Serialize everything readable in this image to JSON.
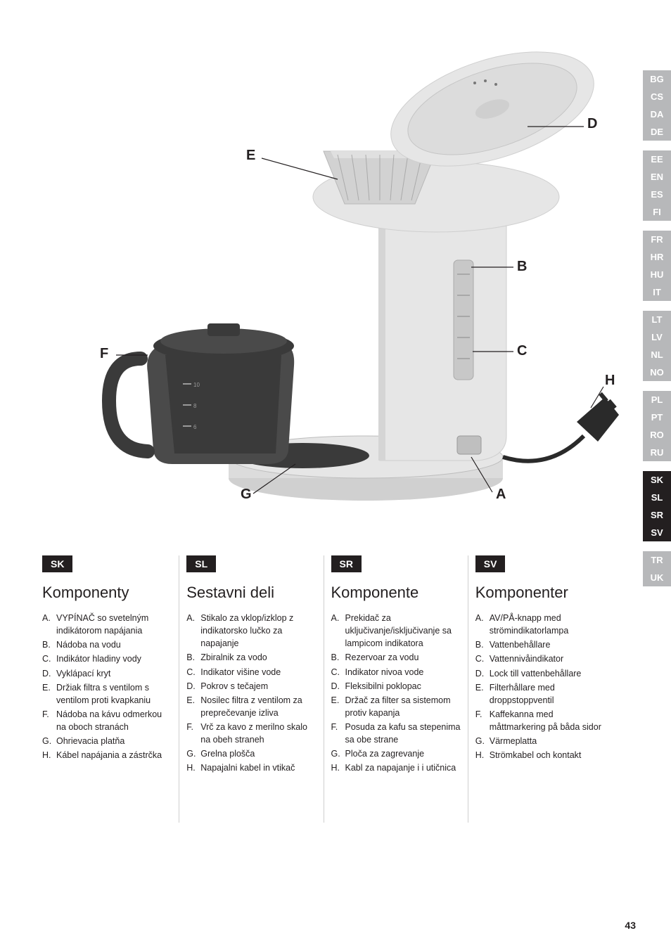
{
  "diagram": {
    "labels": {
      "A": "A",
      "B": "B",
      "C": "C",
      "D": "D",
      "E": "E",
      "F": "F",
      "G": "G",
      "H": "H"
    },
    "colors": {
      "body": "#e6e6e6",
      "body_shadow": "#cfcfcf",
      "dark": "#3a3a3a",
      "outline": "#4a4a4a",
      "line": "#231f20"
    }
  },
  "rail": {
    "groups": [
      {
        "items": [
          "BG",
          "CS",
          "DA",
          "DE"
        ],
        "active": []
      },
      {
        "items": [
          "EE",
          "EN",
          "ES",
          "FI"
        ],
        "active": []
      },
      {
        "items": [
          "FR",
          "HR",
          "HU",
          "IT"
        ],
        "active": []
      },
      {
        "items": [
          "LT",
          "LV",
          "NL",
          "NO"
        ],
        "active": []
      },
      {
        "items": [
          "PL",
          "PT",
          "RO",
          "RU"
        ],
        "active": []
      },
      {
        "items": [
          "SK",
          "SL",
          "SR",
          "SV"
        ],
        "active": [
          "SK",
          "SL",
          "SR",
          "SV"
        ]
      },
      {
        "items": [
          "TR",
          "UK"
        ],
        "active": []
      }
    ]
  },
  "columns": [
    {
      "tag": "SK",
      "title": "Komponenty",
      "parts": [
        {
          "l": "A.",
          "t": "VYPÍNAČ so svetelným indikátorom napájania"
        },
        {
          "l": "B.",
          "t": "Nádoba na vodu"
        },
        {
          "l": "C.",
          "t": "Indikátor hladiny vody"
        },
        {
          "l": "D.",
          "t": "Vyklápací kryt"
        },
        {
          "l": "E.",
          "t": "Držiak filtra s ventilom s ventilom proti kvapkaniu"
        },
        {
          "l": "F.",
          "t": "Nádoba na kávu odmerkou na oboch stranách"
        },
        {
          "l": "G.",
          "t": "Ohrievacia platňa"
        },
        {
          "l": "H.",
          "t": "Kábel napájania a zástrčka"
        }
      ]
    },
    {
      "tag": "SL",
      "title": "Sestavni deli",
      "parts": [
        {
          "l": "A.",
          "t": "Stikalo za vklop/izklop z indikatorsko lučko za napajanje"
        },
        {
          "l": "B.",
          "t": "Zbiralnik za vodo"
        },
        {
          "l": "C.",
          "t": "Indikator višine vode"
        },
        {
          "l": "D.",
          "t": "Pokrov s tečajem"
        },
        {
          "l": "E.",
          "t": "Nosilec filtra z ventilom za preprečevanje izliva"
        },
        {
          "l": "F.",
          "t": "Vrč za kavo z merilno skalo na obeh straneh"
        },
        {
          "l": "G.",
          "t": "Grelna plošča"
        },
        {
          "l": "H.",
          "t": "Napajalni kabel in vtikač"
        }
      ]
    },
    {
      "tag": "SR",
      "title": "Komponente",
      "parts": [
        {
          "l": "A.",
          "t": "Prekidač za uključivanje/isključivanje sa lampicom indikatora"
        },
        {
          "l": "B.",
          "t": "Rezervoar za vodu"
        },
        {
          "l": "C.",
          "t": "Indikator nivoa vode"
        },
        {
          "l": "D.",
          "t": "Fleksibilni poklopac"
        },
        {
          "l": "E.",
          "t": "Držač za filter sa sistemom protiv kapanja"
        },
        {
          "l": "F.",
          "t": "Posuda za kafu sa stepenima sa obe strane"
        },
        {
          "l": "G.",
          "t": "Ploča za zagrevanje"
        },
        {
          "l": "H.",
          "t": "Kabl za napajanje i i utičnica"
        }
      ]
    },
    {
      "tag": "SV",
      "title": "Komponenter",
      "parts": [
        {
          "l": "A.",
          "t": "AV/PÅ-knapp med strömindikatorlampa"
        },
        {
          "l": "B.",
          "t": "Vattenbehållare"
        },
        {
          "l": "C.",
          "t": "Vattennivåindikator"
        },
        {
          "l": "D.",
          "t": "Lock till vattenbehållare"
        },
        {
          "l": "E.",
          "t": "Filterhållare med droppstoppventil"
        },
        {
          "l": "F.",
          "t": "Kaffekanna med måttmarkering på båda sidor"
        },
        {
          "l": "G.",
          "t": "Värmeplatta"
        },
        {
          "l": "H.",
          "t": "Strömkabel och kontakt"
        }
      ]
    }
  ],
  "pageNumber": "43"
}
